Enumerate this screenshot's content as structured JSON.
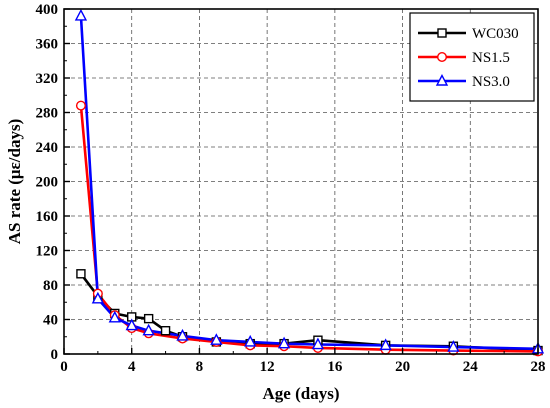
{
  "chart_data": {
    "type": "line",
    "xlabel": "Age (days)",
    "ylabel": "AS rate (με/days)",
    "xlim": [
      0,
      28
    ],
    "ylim": [
      0,
      400
    ],
    "xticks": [
      0,
      4,
      8,
      12,
      16,
      20,
      24,
      28
    ],
    "yticks": [
      0,
      40,
      80,
      120,
      160,
      200,
      240,
      280,
      320,
      360,
      400
    ],
    "grid": true,
    "legend_position": "top-right",
    "series": [
      {
        "name": "WC030",
        "color": "#000000",
        "marker": "square",
        "x": [
          1,
          2,
          3,
          4,
          5,
          6,
          7,
          9,
          11,
          13,
          15,
          19,
          23,
          28
        ],
        "y": [
          93,
          67,
          47,
          43,
          41,
          27,
          20,
          14,
          12,
          12,
          16,
          10,
          9,
          4
        ]
      },
      {
        "name": "NS1.5",
        "color": "#ff0000",
        "marker": "circle",
        "x": [
          1,
          2,
          3,
          4,
          5,
          7,
          9,
          11,
          13,
          15,
          19,
          23,
          28
        ],
        "y": [
          288,
          70,
          45,
          30,
          24,
          18,
          14,
          10,
          9,
          7,
          5,
          4,
          3
        ]
      },
      {
        "name": "NS3.0",
        "color": "#0000ff",
        "marker": "triangle",
        "x": [
          1,
          2,
          3,
          4,
          5,
          7,
          9,
          11,
          13,
          15,
          19,
          23,
          28
        ],
        "y": [
          392,
          64,
          42,
          33,
          27,
          21,
          16,
          14,
          12,
          11,
          10,
          8,
          6
        ]
      }
    ]
  }
}
